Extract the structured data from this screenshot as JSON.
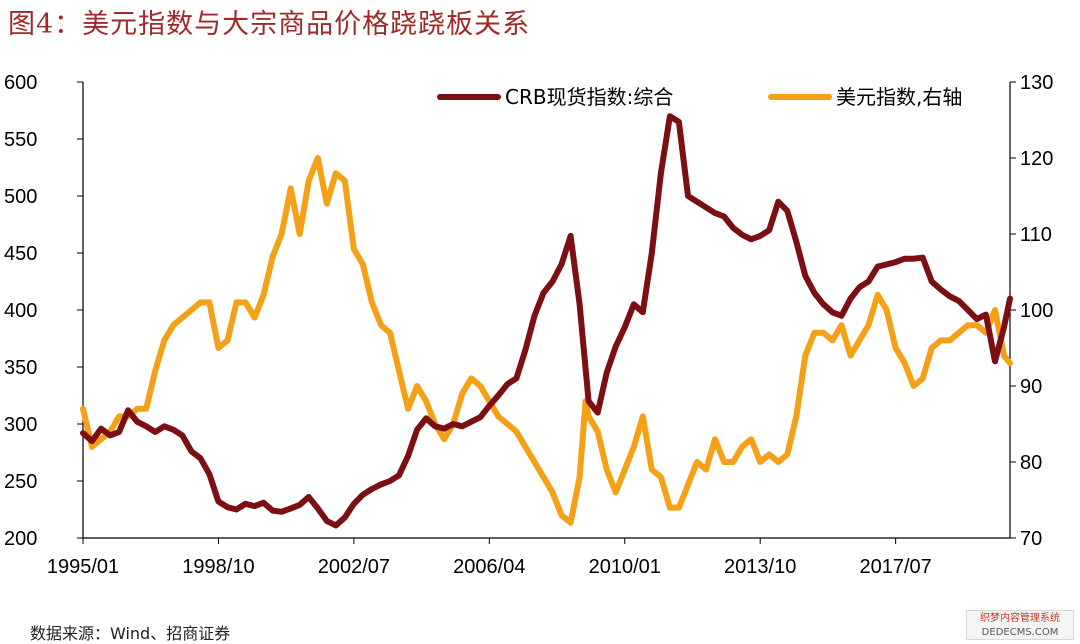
{
  "figure": {
    "title": "图4：美元指数与大宗商品价格跷跷板关系",
    "source": "数据来源：Wind、招商证券"
  },
  "watermark": {
    "line1": "织梦内容管理系统",
    "line2": "DEDECMS.COM"
  },
  "colors": {
    "crb": "#7b0f14",
    "dxy": "#f5a117",
    "title": "#9e2a2b"
  },
  "chart_data": {
    "type": "line",
    "x_tick_labels": [
      "1995/01",
      "1998/10",
      "2002/07",
      "2006/04",
      "2010/01",
      "2013/10",
      "2017/07"
    ],
    "x_range": [
      "1995-01",
      "2020-09"
    ],
    "left_axis": {
      "ylim": [
        200,
        600
      ],
      "ticks": [
        200,
        250,
        300,
        350,
        400,
        450,
        500,
        550,
        600
      ]
    },
    "right_axis": {
      "ylim": [
        70,
        130
      ],
      "ticks": [
        70,
        80,
        90,
        100,
        110,
        120,
        130
      ]
    },
    "legend_position": "top-right",
    "grid": false,
    "series": [
      {
        "name": "CRB现货指数:综合",
        "axis": "left",
        "points": [
          [
            "1995-01",
            292
          ],
          [
            "1995-04",
            285
          ],
          [
            "1995-07",
            296
          ],
          [
            "1995-10",
            290
          ],
          [
            "1996-01",
            293
          ],
          [
            "1996-04",
            312
          ],
          [
            "1996-07",
            302
          ],
          [
            "1996-10",
            298
          ],
          [
            "1997-01",
            293
          ],
          [
            "1997-04",
            298
          ],
          [
            "1997-07",
            295
          ],
          [
            "1997-10",
            290
          ],
          [
            "1998-01",
            276
          ],
          [
            "1998-04",
            270
          ],
          [
            "1998-07",
            256
          ],
          [
            "1998-10",
            232
          ],
          [
            "1999-01",
            227
          ],
          [
            "1999-04",
            225
          ],
          [
            "1999-07",
            230
          ],
          [
            "1999-10",
            228
          ],
          [
            "2000-01",
            231
          ],
          [
            "2000-04",
            224
          ],
          [
            "2000-07",
            223
          ],
          [
            "2000-10",
            226
          ],
          [
            "2001-01",
            229
          ],
          [
            "2001-04",
            236
          ],
          [
            "2001-07",
            226
          ],
          [
            "2001-10",
            215
          ],
          [
            "2002-01",
            211
          ],
          [
            "2002-04",
            218
          ],
          [
            "2002-07",
            230
          ],
          [
            "2002-10",
            238
          ],
          [
            "2003-01",
            243
          ],
          [
            "2003-04",
            247
          ],
          [
            "2003-07",
            250
          ],
          [
            "2003-10",
            255
          ],
          [
            "2004-01",
            272
          ],
          [
            "2004-04",
            295
          ],
          [
            "2004-07",
            305
          ],
          [
            "2004-10",
            298
          ],
          [
            "2005-01",
            296
          ],
          [
            "2005-04",
            300
          ],
          [
            "2005-07",
            298
          ],
          [
            "2005-10",
            302
          ],
          [
            "2006-01",
            306
          ],
          [
            "2006-04",
            316
          ],
          [
            "2006-07",
            325
          ],
          [
            "2006-10",
            335
          ],
          [
            "2007-01",
            340
          ],
          [
            "2007-04",
            365
          ],
          [
            "2007-07",
            395
          ],
          [
            "2007-10",
            415
          ],
          [
            "2008-01",
            425
          ],
          [
            "2008-04",
            440
          ],
          [
            "2008-07",
            465
          ],
          [
            "2008-10",
            405
          ],
          [
            "2009-01",
            320
          ],
          [
            "2009-04",
            310
          ],
          [
            "2009-07",
            345
          ],
          [
            "2009-10",
            368
          ],
          [
            "2010-01",
            385
          ],
          [
            "2010-04",
            405
          ],
          [
            "2010-07",
            398
          ],
          [
            "2010-10",
            450
          ],
          [
            "2011-01",
            520
          ],
          [
            "2011-04",
            570
          ],
          [
            "2011-07",
            565
          ],
          [
            "2011-10",
            500
          ],
          [
            "2012-01",
            495
          ],
          [
            "2012-04",
            490
          ],
          [
            "2012-07",
            485
          ],
          [
            "2012-10",
            482
          ],
          [
            "2013-01",
            472
          ],
          [
            "2013-04",
            466
          ],
          [
            "2013-07",
            462
          ],
          [
            "2013-10",
            465
          ],
          [
            "2014-01",
            470
          ],
          [
            "2014-04",
            495
          ],
          [
            "2014-07",
            487
          ],
          [
            "2014-10",
            460
          ],
          [
            "2015-01",
            430
          ],
          [
            "2015-04",
            415
          ],
          [
            "2015-07",
            405
          ],
          [
            "2015-10",
            398
          ],
          [
            "2016-01",
            395
          ],
          [
            "2016-04",
            410
          ],
          [
            "2016-07",
            420
          ],
          [
            "2016-10",
            425
          ],
          [
            "2017-01",
            438
          ],
          [
            "2017-04",
            440
          ],
          [
            "2017-07",
            442
          ],
          [
            "2017-10",
            445
          ],
          [
            "2018-01",
            445
          ],
          [
            "2018-04",
            446
          ],
          [
            "2018-07",
            425
          ],
          [
            "2018-10",
            418
          ],
          [
            "2019-01",
            412
          ],
          [
            "2019-04",
            408
          ],
          [
            "2019-07",
            400
          ],
          [
            "2019-10",
            392
          ],
          [
            "2020-01",
            396
          ],
          [
            "2020-04",
            355
          ],
          [
            "2020-07",
            385
          ],
          [
            "2020-09",
            410
          ]
        ]
      },
      {
        "name": "美元指数,右轴",
        "axis": "right",
        "points": [
          [
            "1995-01",
            87
          ],
          [
            "1995-04",
            82
          ],
          [
            "1995-07",
            83
          ],
          [
            "1995-10",
            84
          ],
          [
            "1996-01",
            86
          ],
          [
            "1996-04",
            86
          ],
          [
            "1996-07",
            87
          ],
          [
            "1996-10",
            87
          ],
          [
            "1997-01",
            92
          ],
          [
            "1997-04",
            96
          ],
          [
            "1997-07",
            98
          ],
          [
            "1997-10",
            99
          ],
          [
            "1998-01",
            100
          ],
          [
            "1998-04",
            101
          ],
          [
            "1998-07",
            101
          ],
          [
            "1998-10",
            95
          ],
          [
            "1999-01",
            96
          ],
          [
            "1999-04",
            101
          ],
          [
            "1999-07",
            101
          ],
          [
            "1999-10",
            99
          ],
          [
            "2000-01",
            102
          ],
          [
            "2000-04",
            107
          ],
          [
            "2000-07",
            110
          ],
          [
            "2000-10",
            116
          ],
          [
            "2001-01",
            110
          ],
          [
            "2001-04",
            117
          ],
          [
            "2001-07",
            120
          ],
          [
            "2001-10",
            114
          ],
          [
            "2002-01",
            118
          ],
          [
            "2002-04",
            117
          ],
          [
            "2002-07",
            108
          ],
          [
            "2002-10",
            106
          ],
          [
            "2003-01",
            101
          ],
          [
            "2003-04",
            98
          ],
          [
            "2003-07",
            97
          ],
          [
            "2003-10",
            92
          ],
          [
            "2004-01",
            87
          ],
          [
            "2004-04",
            90
          ],
          [
            "2004-07",
            88
          ],
          [
            "2004-10",
            85
          ],
          [
            "2005-01",
            83
          ],
          [
            "2005-04",
            85
          ],
          [
            "2005-07",
            89
          ],
          [
            "2005-10",
            91
          ],
          [
            "2006-01",
            90
          ],
          [
            "2006-04",
            88
          ],
          [
            "2006-07",
            86
          ],
          [
            "2006-10",
            85
          ],
          [
            "2007-01",
            84
          ],
          [
            "2007-04",
            82
          ],
          [
            "2007-07",
            80
          ],
          [
            "2007-10",
            78
          ],
          [
            "2008-01",
            76
          ],
          [
            "2008-04",
            73
          ],
          [
            "2008-07",
            72
          ],
          [
            "2008-10",
            78
          ],
          [
            "2008-12",
            88
          ],
          [
            "2009-01",
            86
          ],
          [
            "2009-04",
            84
          ],
          [
            "2009-07",
            79
          ],
          [
            "2009-10",
            76
          ],
          [
            "2010-01",
            79
          ],
          [
            "2010-04",
            82
          ],
          [
            "2010-07",
            86
          ],
          [
            "2010-10",
            79
          ],
          [
            "2011-01",
            78
          ],
          [
            "2011-04",
            74
          ],
          [
            "2011-07",
            74
          ],
          [
            "2011-10",
            77
          ],
          [
            "2012-01",
            80
          ],
          [
            "2012-04",
            79
          ],
          [
            "2012-07",
            83
          ],
          [
            "2012-10",
            80
          ],
          [
            "2013-01",
            80
          ],
          [
            "2013-04",
            82
          ],
          [
            "2013-07",
            83
          ],
          [
            "2013-10",
            80
          ],
          [
            "2014-01",
            81
          ],
          [
            "2014-04",
            80
          ],
          [
            "2014-07",
            81
          ],
          [
            "2014-10",
            86
          ],
          [
            "2015-01",
            94
          ],
          [
            "2015-04",
            97
          ],
          [
            "2015-07",
            97
          ],
          [
            "2015-10",
            96
          ],
          [
            "2016-01",
            98
          ],
          [
            "2016-04",
            94
          ],
          [
            "2016-07",
            96
          ],
          [
            "2016-10",
            98
          ],
          [
            "2017-01",
            102
          ],
          [
            "2017-04",
            100
          ],
          [
            "2017-07",
            95
          ],
          [
            "2017-10",
            93
          ],
          [
            "2018-01",
            90
          ],
          [
            "2018-04",
            91
          ],
          [
            "2018-07",
            95
          ],
          [
            "2018-10",
            96
          ],
          [
            "2019-01",
            96
          ],
          [
            "2019-04",
            97
          ],
          [
            "2019-07",
            98
          ],
          [
            "2019-10",
            98
          ],
          [
            "2020-01",
            97
          ],
          [
            "2020-04",
            100
          ],
          [
            "2020-07",
            94
          ],
          [
            "2020-09",
            93
          ]
        ]
      }
    ]
  }
}
